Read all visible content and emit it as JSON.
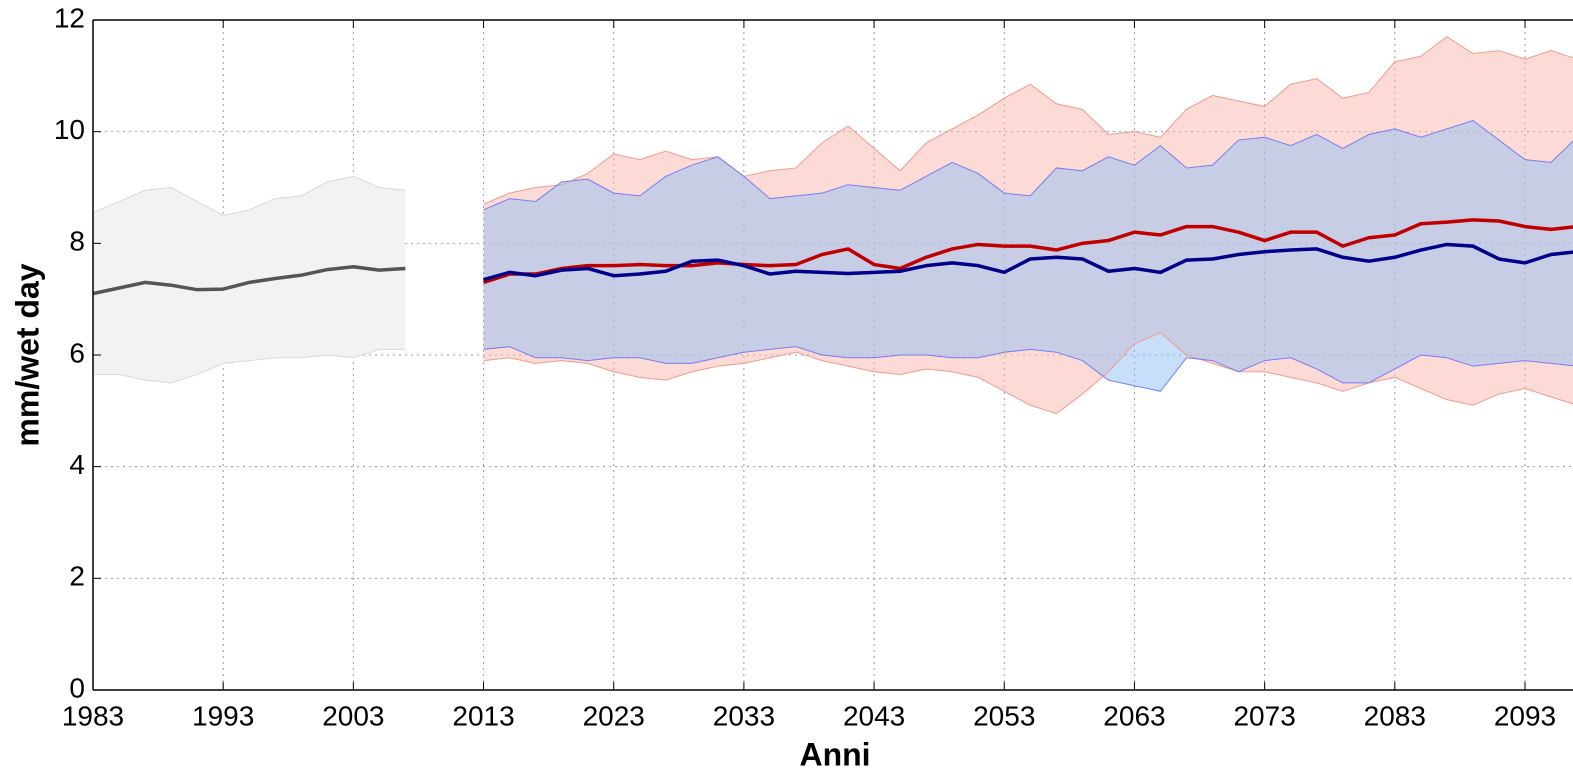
{
  "chart_data": {
    "type": "line",
    "xlabel": "Anni",
    "ylabel": "mm/wet day",
    "xlim": [
      1983,
      2100
    ],
    "ylim": [
      0,
      12
    ],
    "xticks": [
      1983,
      1993,
      2003,
      2013,
      2023,
      2033,
      2043,
      2053,
      2063,
      2073,
      2083,
      2093
    ],
    "yticks": [
      0,
      2,
      4,
      6,
      8,
      10,
      12
    ],
    "grid": true,
    "series": [
      {
        "color": "#555555",
        "band_color": "#f2f2f2",
        "band_edge": "#d9d9d9",
        "x": [
          1983,
          1985,
          1987,
          1989,
          1991,
          1993,
          1995,
          1997,
          1999,
          2001,
          2003,
          2005,
          2007
        ],
        "values": [
          7.1,
          7.2,
          7.3,
          7.25,
          7.17,
          7.18,
          7.3,
          7.37,
          7.43,
          7.53,
          7.58,
          7.52,
          7.55
        ],
        "upper": [
          8.55,
          8.75,
          8.95,
          9.0,
          8.75,
          8.5,
          8.6,
          8.8,
          8.85,
          9.1,
          9.2,
          9.0,
          8.95
        ],
        "lower": [
          5.65,
          5.65,
          5.55,
          5.5,
          5.65,
          5.85,
          5.9,
          5.95,
          5.95,
          6.0,
          5.95,
          6.1,
          6.1
        ]
      },
      {
        "color": "#c00000",
        "band_color": "#f9b8ae",
        "band_edge": "#f29a8e",
        "x": [
          2013,
          2015,
          2017,
          2019,
          2021,
          2023,
          2025,
          2027,
          2029,
          2031,
          2033,
          2035,
          2037,
          2039,
          2041,
          2043,
          2045,
          2047,
          2049,
          2051,
          2053,
          2055,
          2057,
          2059,
          2061,
          2063,
          2065,
          2067,
          2069,
          2071,
          2073,
          2075,
          2077,
          2079,
          2081,
          2083,
          2085,
          2087,
          2089,
          2091,
          2093,
          2095,
          2097
        ],
        "values": [
          7.3,
          7.45,
          7.45,
          7.55,
          7.6,
          7.6,
          7.62,
          7.6,
          7.6,
          7.65,
          7.62,
          7.6,
          7.62,
          7.8,
          7.9,
          7.62,
          7.55,
          7.75,
          7.9,
          7.98,
          7.95,
          7.95,
          7.88,
          8.0,
          8.05,
          8.2,
          8.15,
          8.3,
          8.3,
          8.2,
          8.05,
          8.2,
          8.2,
          7.95,
          8.1,
          8.15,
          8.35,
          8.38,
          8.42,
          8.4,
          8.3,
          8.25,
          8.3
        ],
        "upper": [
          8.7,
          8.9,
          9.0,
          9.05,
          9.25,
          9.6,
          9.5,
          9.65,
          9.5,
          9.55,
          9.2,
          9.3,
          9.35,
          9.8,
          10.1,
          9.7,
          9.3,
          9.8,
          10.05,
          10.3,
          10.6,
          10.85,
          10.5,
          10.4,
          9.95,
          10.0,
          9.9,
          10.4,
          10.65,
          10.55,
          10.45,
          10.85,
          10.95,
          10.6,
          10.7,
          11.25,
          11.35,
          11.7,
          11.4,
          11.45,
          11.3,
          11.45,
          11.3
        ],
        "lower": [
          5.9,
          5.95,
          5.85,
          5.9,
          5.85,
          5.7,
          5.6,
          5.55,
          5.7,
          5.8,
          5.85,
          5.95,
          6.05,
          5.9,
          5.8,
          5.7,
          5.65,
          5.75,
          5.7,
          5.6,
          5.35,
          5.1,
          4.95,
          5.3,
          5.7,
          6.2,
          6.4,
          6.0,
          5.85,
          5.7,
          5.7,
          5.6,
          5.5,
          5.35,
          5.5,
          5.6,
          5.4,
          5.2,
          5.1,
          5.3,
          5.4,
          5.25,
          5.1
        ]
      },
      {
        "color": "#00008b",
        "band_color": "#8fbff2",
        "band_edge": "#7b7bf0",
        "x": [
          2013,
          2015,
          2017,
          2019,
          2021,
          2023,
          2025,
          2027,
          2029,
          2031,
          2033,
          2035,
          2037,
          2039,
          2041,
          2043,
          2045,
          2047,
          2049,
          2051,
          2053,
          2055,
          2057,
          2059,
          2061,
          2063,
          2065,
          2067,
          2069,
          2071,
          2073,
          2075,
          2077,
          2079,
          2081,
          2083,
          2085,
          2087,
          2089,
          2091,
          2093,
          2095,
          2097
        ],
        "values": [
          7.35,
          7.48,
          7.42,
          7.52,
          7.55,
          7.42,
          7.45,
          7.5,
          7.68,
          7.7,
          7.6,
          7.45,
          7.5,
          7.48,
          7.46,
          7.48,
          7.5,
          7.6,
          7.65,
          7.6,
          7.48,
          7.72,
          7.75,
          7.72,
          7.5,
          7.55,
          7.48,
          7.7,
          7.72,
          7.8,
          7.85,
          7.88,
          7.9,
          7.75,
          7.68,
          7.75,
          7.88,
          7.98,
          7.95,
          7.72,
          7.65,
          7.8,
          7.85
        ],
        "upper": [
          8.6,
          8.8,
          8.75,
          9.1,
          9.15,
          8.9,
          8.85,
          9.2,
          9.4,
          9.55,
          9.2,
          8.8,
          8.85,
          8.9,
          9.05,
          9.0,
          8.95,
          9.2,
          9.45,
          9.25,
          8.9,
          8.85,
          9.35,
          9.3,
          9.55,
          9.4,
          9.75,
          9.35,
          9.4,
          9.85,
          9.9,
          9.75,
          9.95,
          9.7,
          9.95,
          10.05,
          9.9,
          10.05,
          10.2,
          9.85,
          9.5,
          9.45,
          9.9
        ],
        "lower": [
          6.1,
          6.15,
          5.95,
          5.95,
          5.9,
          5.95,
          5.95,
          5.85,
          5.85,
          5.95,
          6.05,
          6.1,
          6.15,
          6.0,
          5.95,
          5.95,
          6.0,
          6.0,
          5.95,
          5.95,
          6.05,
          6.1,
          6.05,
          5.9,
          5.55,
          5.45,
          5.35,
          5.95,
          5.9,
          5.7,
          5.9,
          5.95,
          5.75,
          5.5,
          5.5,
          5.75,
          6.0,
          5.95,
          5.8,
          5.85,
          5.9,
          5.85,
          5.8
        ]
      }
    ]
  }
}
